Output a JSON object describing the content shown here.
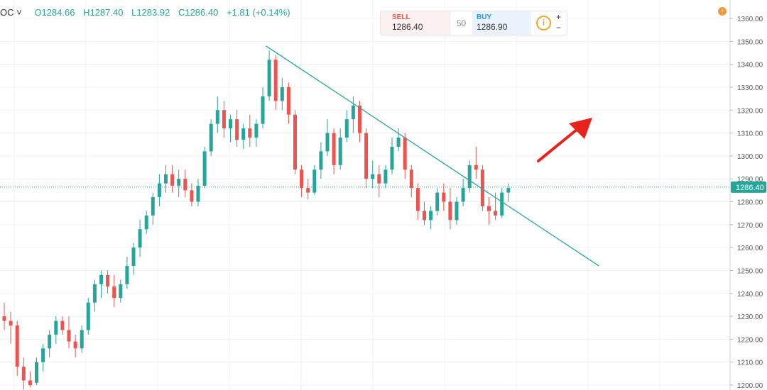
{
  "header": {
    "symbol_suffix": "OC ˅",
    "open": "O1284.66",
    "high": "H1287.40",
    "low": "L1283.92",
    "close": "C1286.40",
    "change": "+1.81 (+0.14%)"
  },
  "trade_widget": {
    "sell_label": "SELL",
    "sell_price": "1286.40",
    "quantity": "50",
    "buy_label": "BUY",
    "buy_price": "1286.90",
    "info_icon": "i",
    "plus": "+",
    "minus": "−"
  },
  "alert_icon": "!",
  "colors": {
    "up": "#26a69a",
    "down": "#ef5350",
    "trendline": "#26a69a",
    "arrow": "#e8231b",
    "price_tag": "#26a69a"
  },
  "chart_data": {
    "type": "candlestick",
    "y_axis": {
      "range": [
        1198,
        1364
      ],
      "ticks": [
        1200,
        1210,
        1220,
        1230,
        1240,
        1250,
        1260,
        1270,
        1280,
        1290,
        1300,
        1310,
        1320,
        1330,
        1340,
        1350,
        1360
      ],
      "tick_labels": [
        "1200.00",
        "1210.00",
        "1220.00",
        "1230.00",
        "1240.00",
        "1250.00",
        "1260.00",
        "1270.00",
        "1280.00",
        "1290.00",
        "1300.00",
        "1310.00",
        "1320.00",
        "1330.00",
        "1340.00",
        "1350.00",
        "1360.00"
      ]
    },
    "current_price": 1286.4,
    "current_price_label": "1286.40",
    "grid": true,
    "candles": [
      [
        1230,
        1236,
        1224,
        1228
      ],
      [
        1228,
        1232,
        1218,
        1226
      ],
      [
        1226,
        1228,
        1204,
        1208
      ],
      [
        1208,
        1212,
        1198,
        1202
      ],
      [
        1202,
        1206,
        1199,
        1200
      ],
      [
        1201,
        1212,
        1200,
        1210
      ],
      [
        1210,
        1218,
        1206,
        1216
      ],
      [
        1216,
        1224,
        1212,
        1222
      ],
      [
        1222,
        1230,
        1218,
        1228
      ],
      [
        1228,
        1230,
        1222,
        1224
      ],
      [
        1224,
        1230,
        1216,
        1219
      ],
      [
        1219,
        1222,
        1212,
        1216
      ],
      [
        1216,
        1226,
        1214,
        1224
      ],
      [
        1224,
        1238,
        1222,
        1236
      ],
      [
        1236,
        1246,
        1232,
        1244
      ],
      [
        1244,
        1250,
        1238,
        1248
      ],
      [
        1248,
        1250,
        1240,
        1243
      ],
      [
        1243,
        1248,
        1234,
        1238
      ],
      [
        1238,
        1246,
        1236,
        1244
      ],
      [
        1244,
        1256,
        1242,
        1252
      ],
      [
        1252,
        1262,
        1248,
        1260
      ],
      [
        1260,
        1272,
        1256,
        1268
      ],
      [
        1268,
        1276,
        1266,
        1274
      ],
      [
        1274,
        1284,
        1270,
        1282
      ],
      [
        1282,
        1292,
        1278,
        1288
      ],
      [
        1288,
        1296,
        1284,
        1292
      ],
      [
        1292,
        1296,
        1284,
        1287
      ],
      [
        1287,
        1294,
        1282,
        1290
      ],
      [
        1290,
        1294,
        1282,
        1285
      ],
      [
        1285,
        1288,
        1278,
        1280
      ],
      [
        1280,
        1290,
        1278,
        1287
      ],
      [
        1287,
        1304,
        1286,
        1302
      ],
      [
        1302,
        1316,
        1300,
        1314
      ],
      [
        1314,
        1326,
        1310,
        1320
      ],
      [
        1320,
        1324,
        1308,
        1312
      ],
      [
        1312,
        1318,
        1306,
        1316
      ],
      [
        1316,
        1320,
        1304,
        1307
      ],
      [
        1307,
        1314,
        1303,
        1312
      ],
      [
        1312,
        1318,
        1304,
        1308
      ],
      [
        1308,
        1316,
        1304,
        1314
      ],
      [
        1314,
        1330,
        1312,
        1326
      ],
      [
        1326,
        1346,
        1324,
        1342
      ],
      [
        1342,
        1344,
        1320,
        1324
      ],
      [
        1324,
        1334,
        1320,
        1330
      ],
      [
        1330,
        1332,
        1314,
        1318
      ],
      [
        1318,
        1320,
        1292,
        1294
      ],
      [
        1294,
        1296,
        1282,
        1286
      ],
      [
        1286,
        1290,
        1281,
        1284
      ],
      [
        1284,
        1296,
        1283,
        1294
      ],
      [
        1294,
        1306,
        1290,
        1302
      ],
      [
        1302,
        1316,
        1300,
        1310
      ],
      [
        1310,
        1312,
        1292,
        1296
      ],
      [
        1296,
        1312,
        1294,
        1308
      ],
      [
        1308,
        1320,
        1306,
        1316
      ],
      [
        1316,
        1326,
        1310,
        1322
      ],
      [
        1322,
        1324,
        1306,
        1310
      ],
      [
        1310,
        1312,
        1286,
        1290
      ],
      [
        1290,
        1298,
        1286,
        1292
      ],
      [
        1292,
        1296,
        1282,
        1288
      ],
      [
        1288,
        1296,
        1286,
        1294
      ],
      [
        1294,
        1308,
        1292,
        1304
      ],
      [
        1304,
        1312,
        1302,
        1308
      ],
      [
        1308,
        1310,
        1290,
        1294
      ],
      [
        1294,
        1296,
        1282,
        1286
      ],
      [
        1286,
        1288,
        1272,
        1276
      ],
      [
        1276,
        1280,
        1270,
        1272
      ],
      [
        1272,
        1278,
        1268,
        1276
      ],
      [
        1276,
        1286,
        1274,
        1284
      ],
      [
        1284,
        1288,
        1276,
        1280
      ],
      [
        1280,
        1286,
        1268,
        1272
      ],
      [
        1272,
        1282,
        1270,
        1280
      ],
      [
        1280,
        1290,
        1278,
        1286
      ],
      [
        1286,
        1298,
        1284,
        1296
      ],
      [
        1296,
        1304,
        1290,
        1294
      ],
      [
        1294,
        1296,
        1276,
        1278
      ],
      [
        1278,
        1282,
        1270,
        1276
      ],
      [
        1276,
        1284,
        1272,
        1274
      ],
      [
        1274,
        1286,
        1273,
        1284
      ],
      [
        1284,
        1288,
        1280,
        1286
      ]
    ],
    "trendline": {
      "from_index": 40.5,
      "from_price": 1348,
      "to_index": 92,
      "to_price": 1252
    }
  }
}
